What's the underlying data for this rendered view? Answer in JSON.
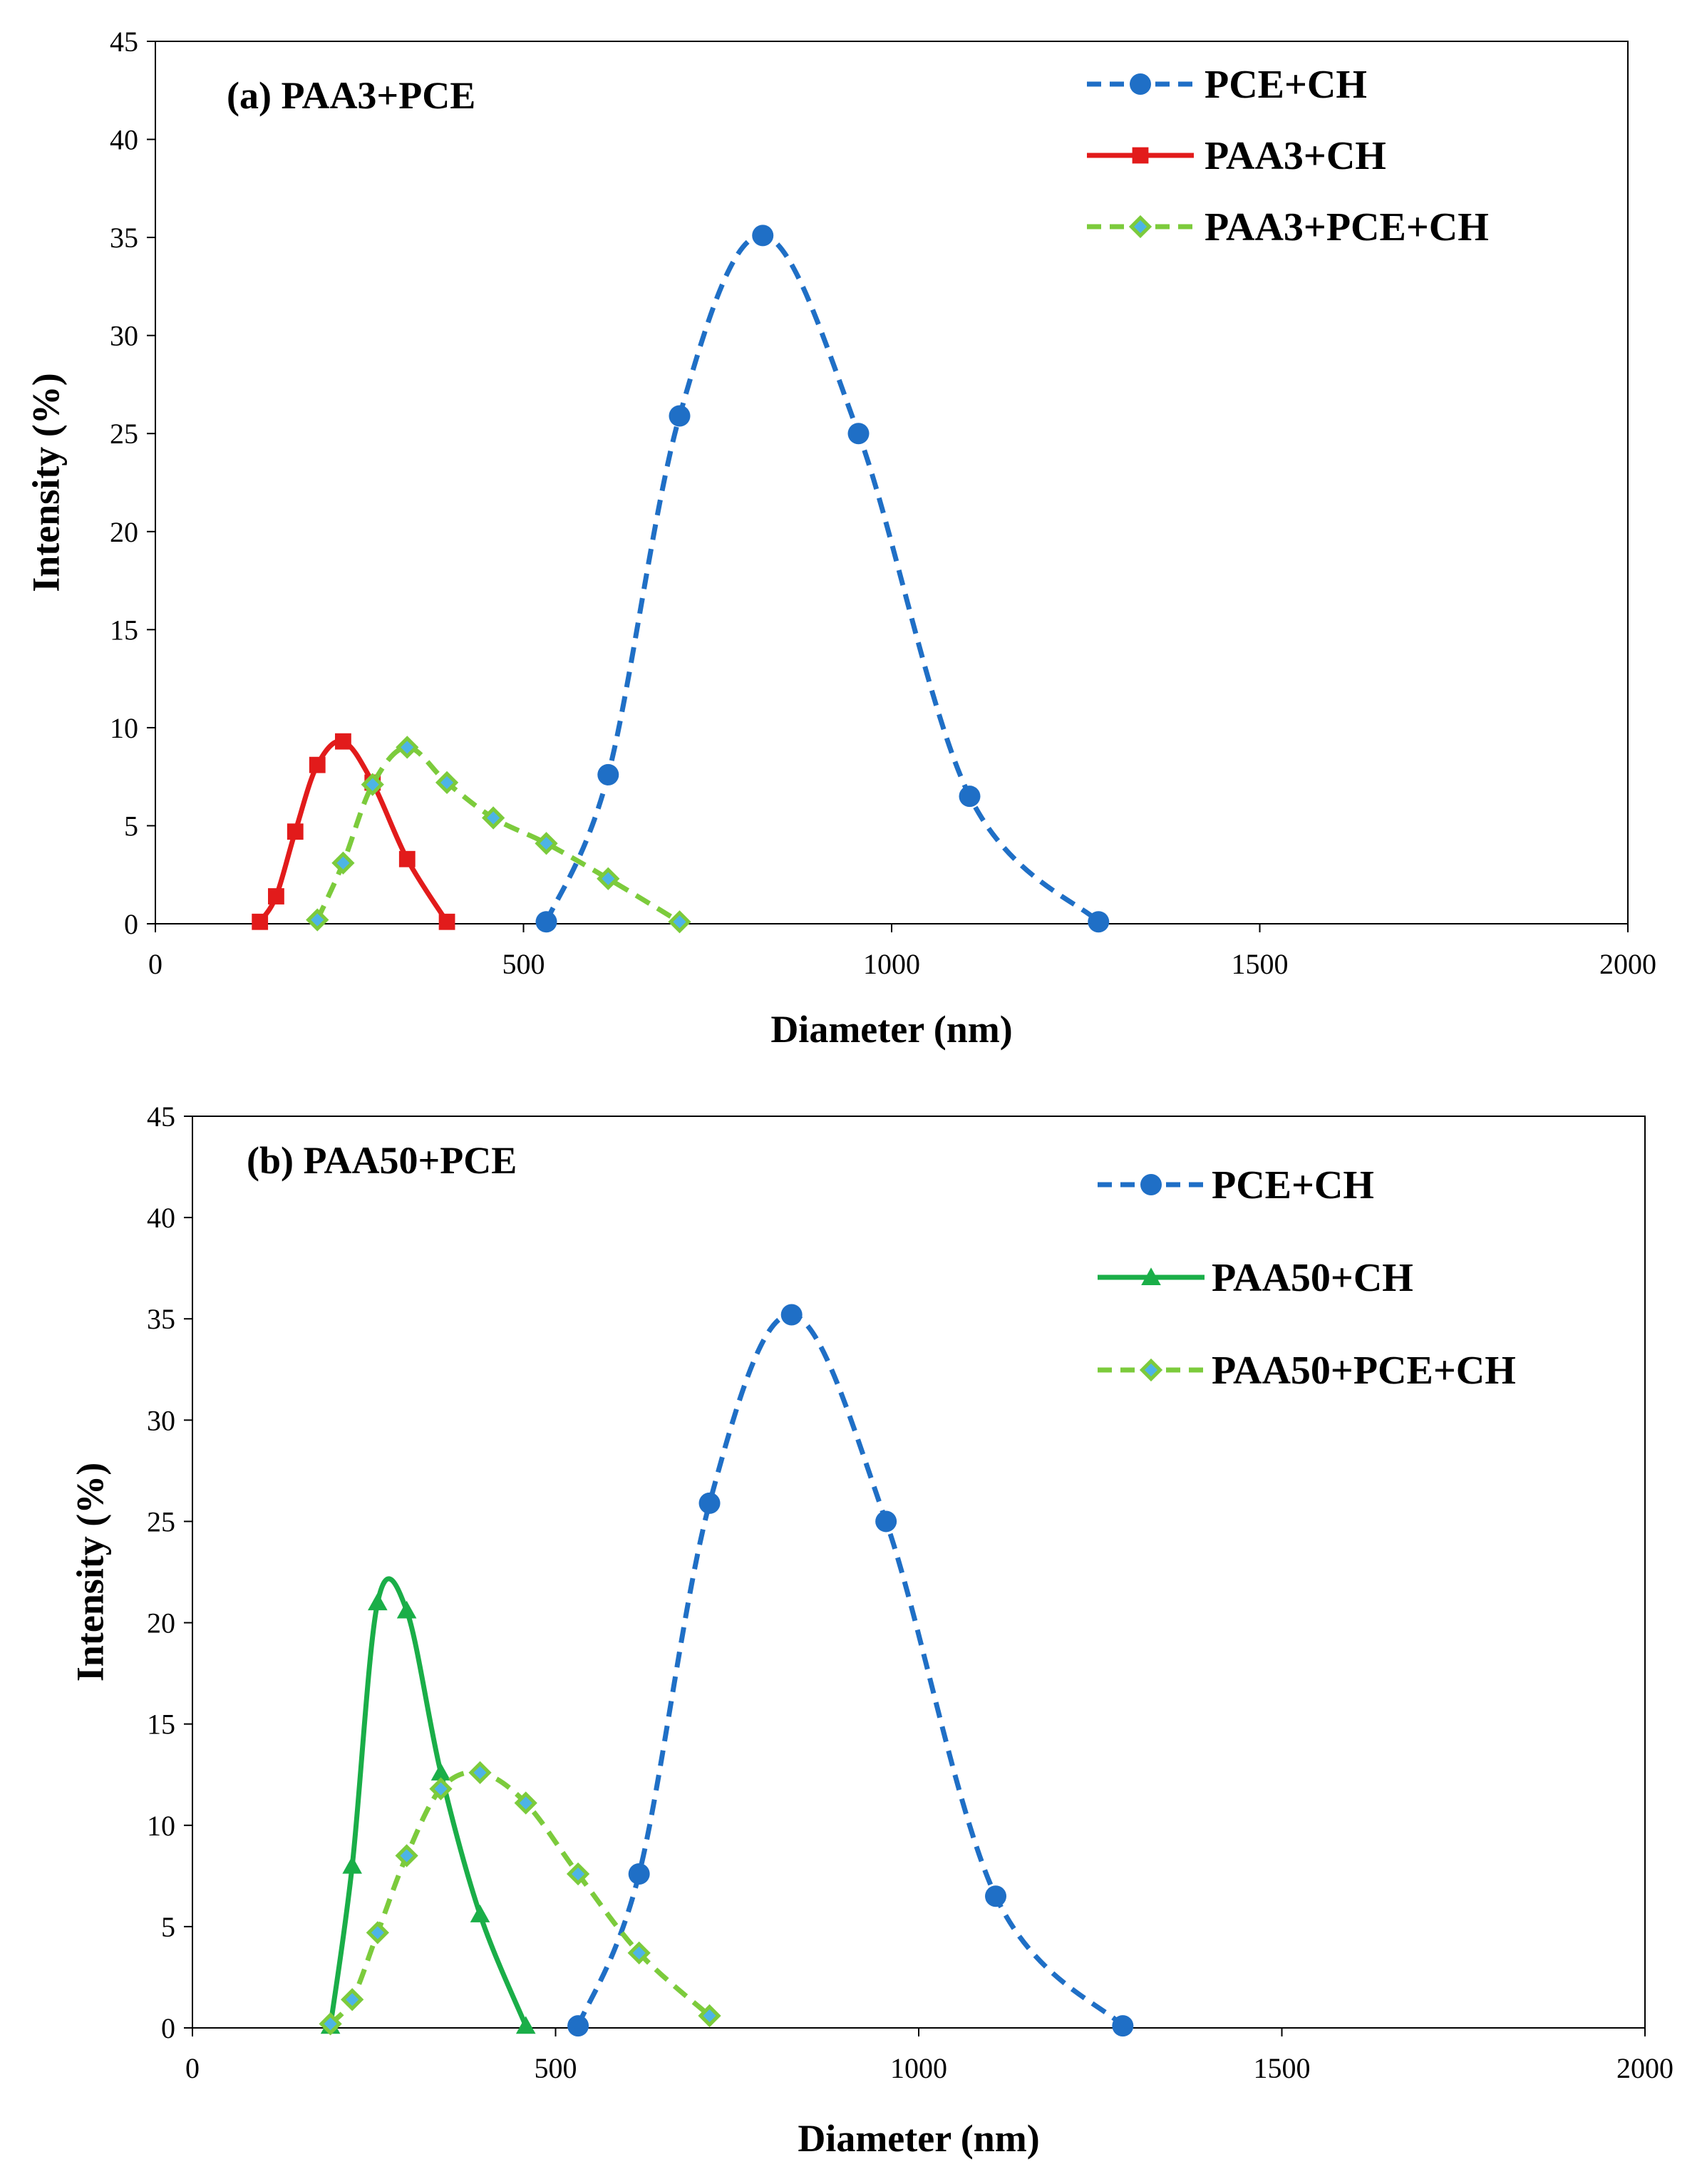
{
  "chart_data": [
    {
      "type": "line",
      "title": "(a) PAA3+PCE",
      "xlabel": "Diameter (nm)",
      "ylabel": "Intensity (%)",
      "xlim": [
        0,
        2000
      ],
      "ylim": [
        0,
        45
      ],
      "xticks": [
        0,
        500,
        1000,
        1500,
        2000
      ],
      "yticks": [
        0,
        5,
        10,
        15,
        20,
        25,
        30,
        35,
        40,
        45
      ],
      "grid": false,
      "legend_position": "top-right",
      "series": [
        {
          "name": "PCE+CH",
          "color": "#1f6fc6",
          "dash": "dashed",
          "marker": "circle",
          "x": [
            531,
            615,
            712,
            825,
            955,
            1106,
            1281
          ],
          "y": [
            0.1,
            7.6,
            25.9,
            35.1,
            25.0,
            6.5,
            0.1
          ]
        },
        {
          "name": "PAA3+CH",
          "color": "#e21b1b",
          "dash": "solid",
          "marker": "square",
          "x": [
            142,
            164,
            190,
            220,
            255,
            295,
            342,
            396
          ],
          "y": [
            0.1,
            1.4,
            4.7,
            8.1,
            9.3,
            7.2,
            3.3,
            0.1
          ]
        },
        {
          "name": "PAA3+PCE+CH",
          "color": "#7ccb3c",
          "dash": "dashed",
          "marker": "diamond",
          "x": [
            220,
            255,
            295,
            342,
            396,
            459,
            531,
            615,
            712
          ],
          "y": [
            0.2,
            3.1,
            7.1,
            9.0,
            7.2,
            5.4,
            4.1,
            2.3,
            0.1
          ]
        }
      ]
    },
    {
      "type": "line",
      "title": "(b) PAA50+PCE",
      "xlabel": "Diameter (nm)",
      "ylabel": "Intensity (%)",
      "xlim": [
        0,
        2000
      ],
      "ylim": [
        0,
        45
      ],
      "xticks": [
        0,
        500,
        1000,
        1500,
        2000
      ],
      "yticks": [
        0,
        5,
        10,
        15,
        20,
        25,
        30,
        35,
        40,
        45
      ],
      "grid": false,
      "legend_position": "top-right",
      "series": [
        {
          "name": "PCE+CH",
          "color": "#1f6fc6",
          "dash": "dashed",
          "marker": "circle",
          "x": [
            531,
            615,
            712,
            825,
            955,
            1106,
            1281
          ],
          "y": [
            0.1,
            7.6,
            25.9,
            35.2,
            25.0,
            6.5,
            0.1
          ]
        },
        {
          "name": "PAA50+CH",
          "color": "#1aae48",
          "dash": "solid",
          "marker": "triangle",
          "x": [
            190,
            220,
            255,
            295,
            342,
            396,
            459
          ],
          "y": [
            0.1,
            8.0,
            21.0,
            20.6,
            12.6,
            5.6,
            0.1
          ]
        },
        {
          "name": "PAA50+PCE+CH",
          "color": "#7ccb3c",
          "dash": "dashed",
          "marker": "diamond",
          "x": [
            190,
            220,
            255,
            295,
            342,
            396,
            459,
            531,
            615,
            712
          ],
          "y": [
            0.2,
            1.4,
            4.7,
            8.5,
            11.8,
            12.6,
            11.1,
            7.6,
            3.7,
            0.6
          ]
        }
      ]
    }
  ]
}
